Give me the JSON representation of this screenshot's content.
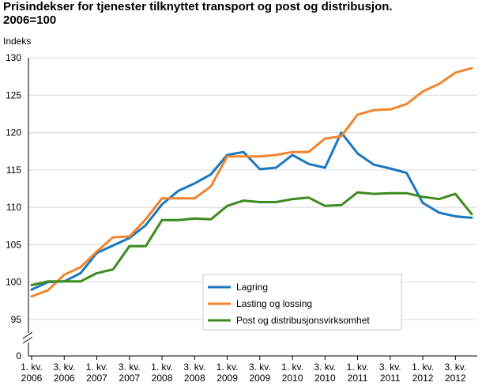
{
  "chart_data": {
    "type": "line",
    "title": "Prisindekser for tjenester tilknyttet transport og post og distribusjon.",
    "subtitle": "2006=100",
    "ylabel": "Indeks",
    "xlabel": "",
    "ylim": [
      0,
      130
    ],
    "y_axis_break": true,
    "y_ticks": [
      0,
      95,
      100,
      105,
      110,
      115,
      120,
      125,
      130
    ],
    "grid": true,
    "legend_position": "bottom-center",
    "x": [
      "2006K1",
      "2006K2",
      "2006K3",
      "2006K4",
      "2007K1",
      "2007K2",
      "2007K3",
      "2007K4",
      "2008K1",
      "2008K2",
      "2008K3",
      "2008K4",
      "2009K1",
      "2009K2",
      "2009K3",
      "2009K4",
      "2010K1",
      "2010K2",
      "2010K3",
      "2010K4",
      "2011K1",
      "2011K2",
      "2011K3",
      "2011K4",
      "2012K1",
      "2012K2",
      "2012K3",
      "2012K4"
    ],
    "x_tick_labels": [
      {
        "q": "1. kv.",
        "y": "2006"
      },
      {
        "q": "3. kv.",
        "y": "2006"
      },
      {
        "q": "1. kv.",
        "y": "2007"
      },
      {
        "q": "3. kv.",
        "y": "2007"
      },
      {
        "q": "1. kv.",
        "y": "2008"
      },
      {
        "q": "3. kv.",
        "y": "2008"
      },
      {
        "q": "1. kv.",
        "y": "2009"
      },
      {
        "q": "3. kv.",
        "y": "2009"
      },
      {
        "q": "1. kv.",
        "y": "2010"
      },
      {
        "q": "3. kv.",
        "y": "2010"
      },
      {
        "q": "1. kv.",
        "y": "2011"
      },
      {
        "q": "3. kv.",
        "y": "2011"
      },
      {
        "q": "1. kv.",
        "y": "2012"
      },
      {
        "q": "3. kv.",
        "y": "2012"
      }
    ],
    "series": [
      {
        "name": "Lagring",
        "color": "#1a78c2",
        "values": [
          99.0,
          100.0,
          100.1,
          101.2,
          103.9,
          104.9,
          105.9,
          107.6,
          110.4,
          112.2,
          113.2,
          114.4,
          117.0,
          117.4,
          115.1,
          115.3,
          117.0,
          115.8,
          115.3,
          120.0,
          117.2,
          115.7,
          115.2,
          114.6,
          110.6,
          109.3,
          108.8,
          108.6
        ]
      },
      {
        "name": "Lasting og lossing",
        "color": "#f0852d",
        "values": [
          98.1,
          98.9,
          101.0,
          102.0,
          104.1,
          106.0,
          106.1,
          108.4,
          111.2,
          111.2,
          111.2,
          112.8,
          116.8,
          116.8,
          116.8,
          117.0,
          117.4,
          117.4,
          119.2,
          119.5,
          122.4,
          123.0,
          123.1,
          123.8,
          125.5,
          126.5,
          128.0,
          128.6
        ]
      },
      {
        "name": "Post og distribusjonsvirksomhet",
        "color": "#3d8c1f",
        "values": [
          99.6,
          100.1,
          100.1,
          100.1,
          101.2,
          101.7,
          104.8,
          104.8,
          108.3,
          108.3,
          108.5,
          108.4,
          110.2,
          110.9,
          110.7,
          110.7,
          111.1,
          111.3,
          110.2,
          110.3,
          112.0,
          111.8,
          111.9,
          111.9,
          111.4,
          111.1,
          111.8,
          109.1
        ]
      }
    ]
  }
}
